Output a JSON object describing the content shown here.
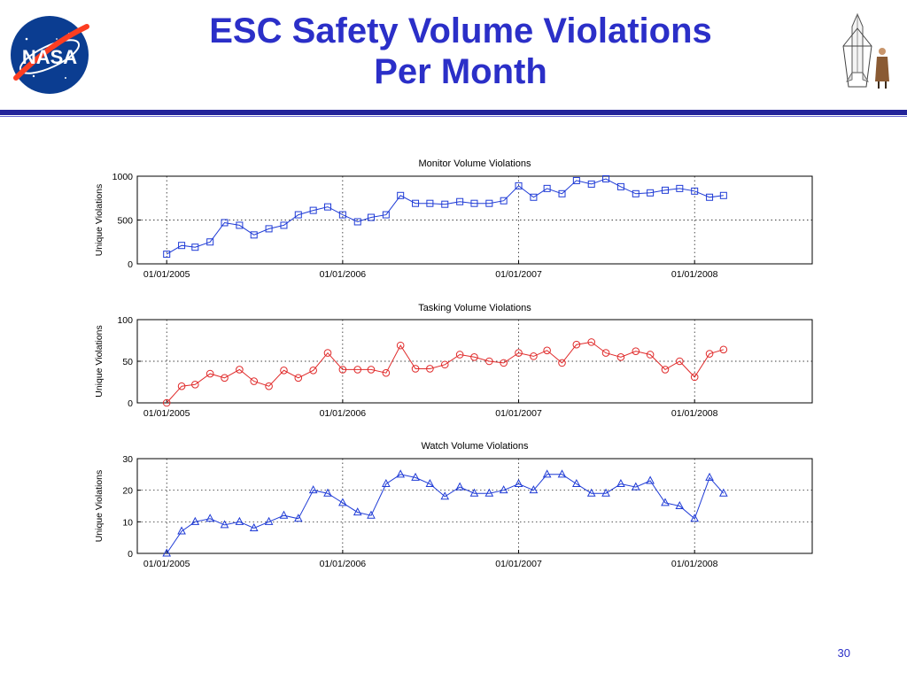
{
  "slide": {
    "title_line1": "ESC Safety Volume Violations",
    "title_line2": "Per Month",
    "page_number": "30",
    "logo_text": "NASA"
  },
  "colors": {
    "title": "#2b2fc8",
    "rule": "#23249a",
    "monitor_series": "#1f3bd6",
    "tasking_series": "#e02a2a",
    "watch_series": "#1f3bd6"
  },
  "chart_data": [
    {
      "type": "line",
      "title": "Monitor Volume Violations",
      "ylabel": "Unique Violations",
      "xlabel": "",
      "marker": "square",
      "ylim": [
        0,
        1000
      ],
      "yticks": [
        0,
        500,
        1000
      ],
      "xlim": [
        "2004-11-01",
        "2008-09-01"
      ],
      "xticks": [
        "01/01/2005",
        "01/01/2006",
        "01/01/2007",
        "01/01/2008"
      ],
      "grid": true,
      "series": [
        {
          "x": [
            "2005-01",
            "2005-02",
            "2005-03",
            "2005-04",
            "2005-05",
            "2005-06",
            "2005-07",
            "2005-08",
            "2005-09",
            "2005-10",
            "2005-11",
            "2005-12",
            "2006-01",
            "2006-02",
            "2006-03",
            "2006-04",
            "2006-05",
            "2006-06",
            "2006-07",
            "2006-08",
            "2006-09",
            "2006-10",
            "2006-11",
            "2006-12",
            "2007-01",
            "2007-02",
            "2007-03",
            "2007-04",
            "2007-05",
            "2007-06",
            "2007-07",
            "2007-08",
            "2007-09",
            "2007-10",
            "2007-11",
            "2007-12",
            "2008-01",
            "2008-02",
            "2008-03"
          ],
          "values": [
            110,
            210,
            190,
            250,
            470,
            440,
            330,
            400,
            440,
            560,
            610,
            650,
            560,
            480,
            530,
            560,
            780,
            690,
            690,
            680,
            710,
            690,
            690,
            720,
            890,
            760,
            860,
            800,
            950,
            910,
            970,
            880,
            800,
            810,
            840,
            860,
            830,
            760,
            780
          ]
        }
      ]
    },
    {
      "type": "line",
      "title": "Tasking Volume Violations",
      "ylabel": "Unique Violations",
      "xlabel": "",
      "marker": "circle",
      "ylim": [
        0,
        100
      ],
      "yticks": [
        0,
        50,
        100
      ],
      "xlim": [
        "2004-11-01",
        "2008-09-01"
      ],
      "xticks": [
        "01/01/2005",
        "01/01/2006",
        "01/01/2007",
        "01/01/2008"
      ],
      "grid": true,
      "series": [
        {
          "x": [
            "2005-01",
            "2005-02",
            "2005-03",
            "2005-04",
            "2005-05",
            "2005-06",
            "2005-07",
            "2005-08",
            "2005-09",
            "2005-10",
            "2005-11",
            "2005-12",
            "2006-01",
            "2006-02",
            "2006-03",
            "2006-04",
            "2006-05",
            "2006-06",
            "2006-07",
            "2006-08",
            "2006-09",
            "2006-10",
            "2006-11",
            "2006-12",
            "2007-01",
            "2007-02",
            "2007-03",
            "2007-04",
            "2007-05",
            "2007-06",
            "2007-07",
            "2007-08",
            "2007-09",
            "2007-10",
            "2007-11",
            "2007-12",
            "2008-01",
            "2008-02",
            "2008-03"
          ],
          "values": [
            0,
            20,
            22,
            35,
            30,
            40,
            26,
            20,
            39,
            30,
            39,
            60,
            40,
            40,
            40,
            36,
            69,
            41,
            41,
            46,
            58,
            55,
            50,
            48,
            60,
            56,
            63,
            48,
            70,
            73,
            60,
            55,
            62,
            58,
            40,
            50,
            31,
            59,
            64
          ]
        }
      ]
    },
    {
      "type": "line",
      "title": "Watch Volume Violations",
      "ylabel": "Unique Violations",
      "xlabel": "",
      "marker": "triangle",
      "ylim": [
        0,
        30
      ],
      "yticks": [
        0,
        10,
        20,
        30
      ],
      "xlim": [
        "2004-11-01",
        "2008-09-01"
      ],
      "xticks": [
        "01/01/2005",
        "01/01/2006",
        "01/01/2007",
        "01/01/2008"
      ],
      "grid": true,
      "series": [
        {
          "x": [
            "2005-01",
            "2005-02",
            "2005-03",
            "2005-04",
            "2005-05",
            "2005-06",
            "2005-07",
            "2005-08",
            "2005-09",
            "2005-10",
            "2005-11",
            "2005-12",
            "2006-01",
            "2006-02",
            "2006-03",
            "2006-04",
            "2006-05",
            "2006-06",
            "2006-07",
            "2006-08",
            "2006-09",
            "2006-10",
            "2006-11",
            "2006-12",
            "2007-01",
            "2007-02",
            "2007-03",
            "2007-04",
            "2007-05",
            "2007-06",
            "2007-07",
            "2007-08",
            "2007-09",
            "2007-10",
            "2007-11",
            "2007-12",
            "2008-01",
            "2008-02",
            "2008-03"
          ],
          "values": [
            0,
            7,
            10,
            11,
            9,
            10,
            8,
            10,
            12,
            11,
            20,
            19,
            16,
            13,
            12,
            22,
            25,
            24,
            22,
            18,
            21,
            19,
            19,
            20,
            22,
            20,
            25,
            25,
            22,
            19,
            19,
            22,
            21,
            23,
            16,
            15,
            11,
            24,
            19
          ]
        }
      ]
    }
  ]
}
